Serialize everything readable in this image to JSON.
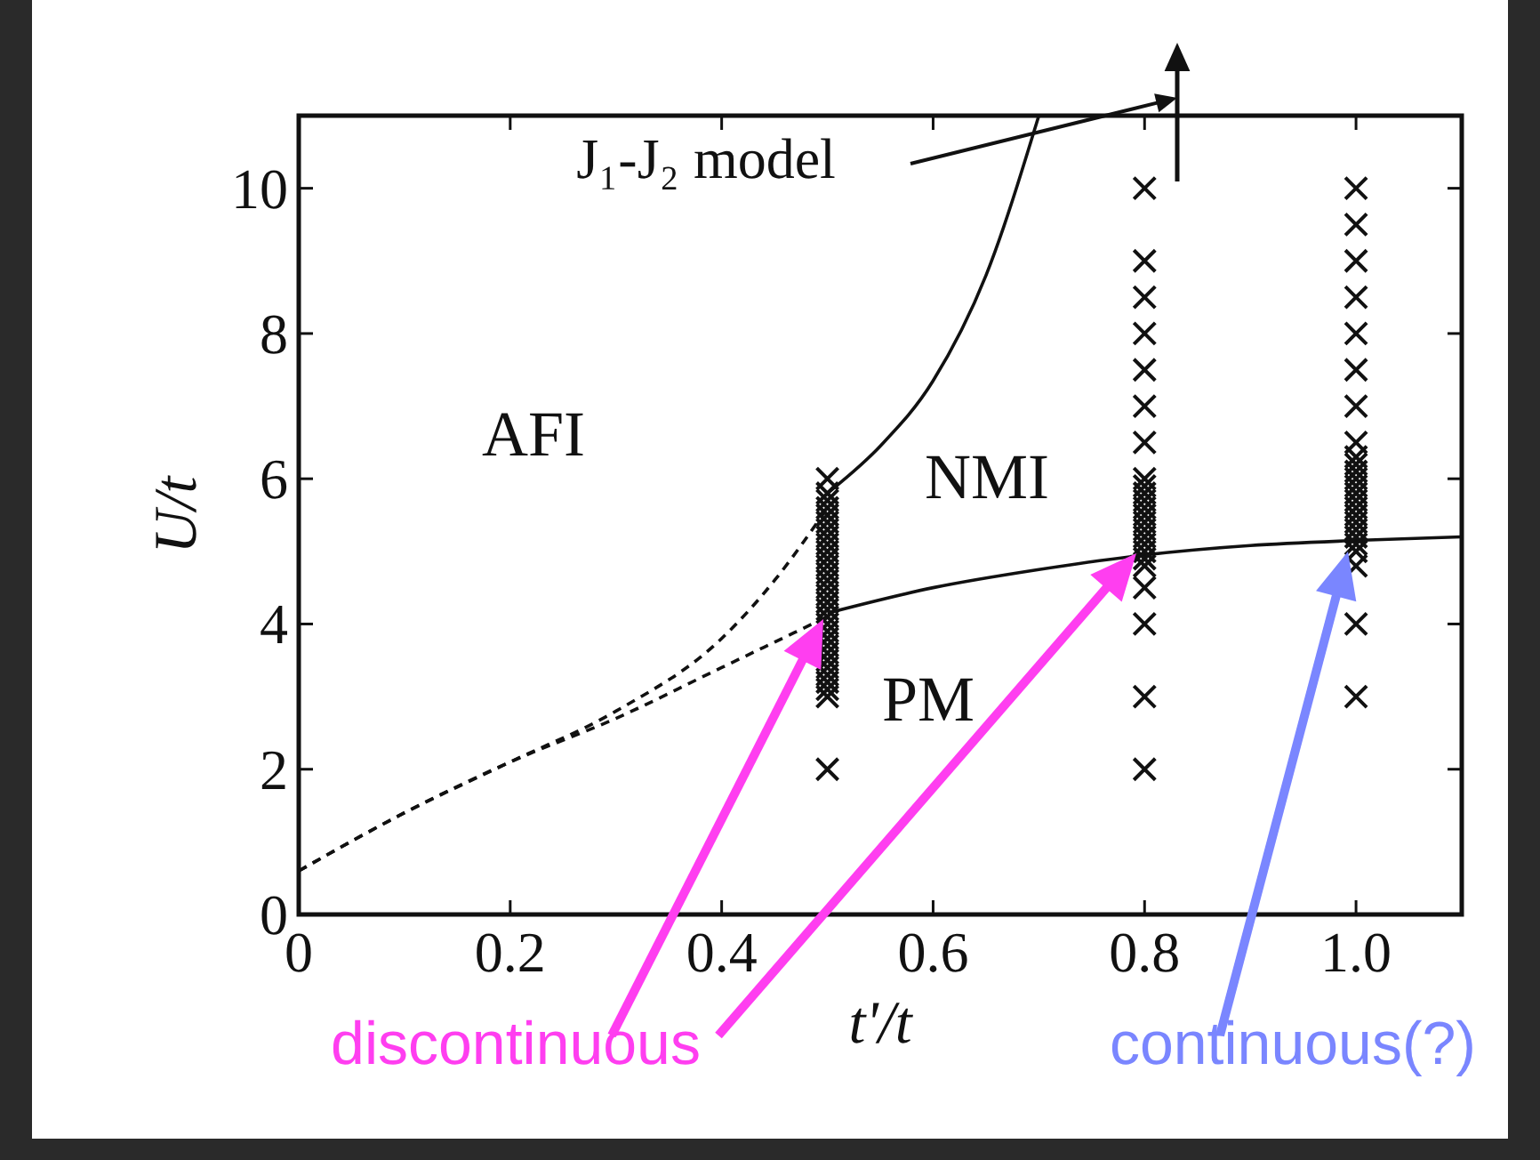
{
  "chart_data": {
    "type": "line",
    "xlabel": "t'/t",
    "ylabel": "U/t",
    "xlim": [
      0,
      1.1
    ],
    "ylim": [
      0,
      11
    ],
    "xticks": [
      0,
      0.2,
      0.4,
      0.6,
      0.8,
      {
        "value": 1,
        "label": "1.0"
      }
    ],
    "yticks": [
      0,
      2,
      4,
      6,
      8,
      10
    ],
    "grid": false,
    "annotations": [
      "AFI",
      "NMI",
      "PM",
      "J₁-J₂ model",
      "discontinuous",
      "continuous(?)"
    ],
    "series": [
      {
        "color": "#111111",
        "line_style": "solid",
        "x": [
          0.5,
          0.55,
          0.6,
          0.65,
          0.7
        ],
        "values": [
          5.8,
          6.45,
          7.35,
          8.8,
          11
        ]
      },
      {
        "color": "#111111",
        "line_style": "solid",
        "x": [
          0.5,
          0.6,
          0.7,
          0.8,
          0.9,
          1.0,
          1.1
        ],
        "values": [
          4.15,
          4.5,
          4.75,
          4.95,
          5.08,
          5.15,
          5.2
        ]
      },
      {
        "color": "#111111",
        "line_style": "dashed",
        "x": [
          0,
          0.1,
          0.2,
          0.3,
          0.4,
          0.45,
          0.5
        ],
        "values": [
          0.6,
          1.4,
          2.1,
          2.8,
          3.8,
          4.6,
          5.6
        ]
      },
      {
        "color": "#111111",
        "line_style": "dashed",
        "x": [
          0,
          0.1,
          0.2,
          0.3,
          0.4,
          0.45,
          0.5
        ],
        "values": [
          0.6,
          1.4,
          2.1,
          2.7,
          3.4,
          3.75,
          4.1
        ]
      },
      {
        "type": "scatter",
        "color": "#111111",
        "marker": "cross",
        "x": [
          0.5,
          0.5,
          0.5,
          0.5,
          0.5,
          0.5,
          0.5,
          0.5,
          0.5,
          0.5,
          0.5,
          0.5,
          0.5,
          0.5,
          0.5,
          0.5,
          0.5,
          0.5,
          0.5,
          0.5,
          0.5,
          0.5,
          0.5,
          0.5,
          0.5,
          0.5,
          0.5,
          0.5,
          0.5,
          0.5,
          0.5,
          0.8,
          0.8,
          0.8,
          0.8,
          0.8,
          0.8,
          0.8,
          0.8,
          0.8,
          0.8,
          0.8,
          0.8,
          0.8,
          0.8,
          0.8,
          0.8,
          0.8,
          0.8,
          0.8,
          0.8,
          0.8,
          0.8,
          0.8,
          0.8,
          1,
          1,
          1,
          1,
          1,
          1,
          1,
          1,
          1,
          1,
          1,
          1,
          1,
          1,
          1,
          1,
          1,
          1,
          1,
          1,
          1,
          1,
          1,
          1,
          1
        ],
        "values": [
          2,
          3,
          3.1,
          3.2,
          3.3,
          3.4,
          3.5,
          3.6,
          3.7,
          3.8,
          3.9,
          4,
          4.1,
          4.2,
          4.3,
          4.4,
          4.5,
          4.6,
          4.7,
          4.8,
          4.9,
          5,
          5.1,
          5.2,
          5.3,
          5.4,
          5.5,
          5.6,
          5.7,
          5.8,
          6,
          2,
          3,
          4,
          4.5,
          4.8,
          4.9,
          5,
          5.1,
          5.2,
          5.3,
          5.4,
          5.5,
          5.6,
          5.7,
          5.8,
          5.9,
          6,
          6.5,
          7,
          7.5,
          8,
          8.5,
          9,
          10,
          3,
          4,
          4.8,
          5,
          5.1,
          5.2,
          5.3,
          5.4,
          5.5,
          5.6,
          5.7,
          5.8,
          5.9,
          6,
          6.1,
          6.2,
          6.3,
          6.5,
          7,
          7.5,
          8,
          8.5,
          9,
          9.5,
          10
        ]
      }
    ]
  }
}
